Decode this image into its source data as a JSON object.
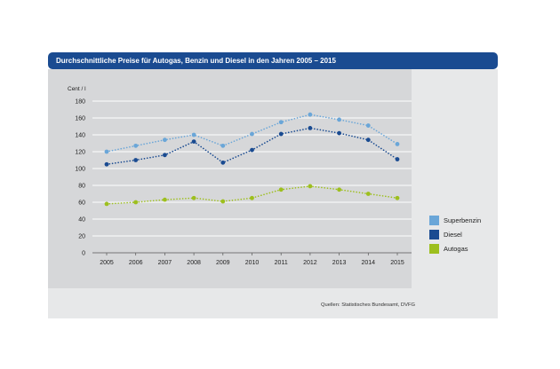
{
  "header": {
    "title": "Durchschnittliche Preise für Autogas, Benzin und Diesel in den Jahren 2005 – 2015"
  },
  "source": "Quellen: Statistisches Bundesamt, DVFG",
  "chart_data": {
    "type": "line",
    "title": "Durchschnittliche Preise für Autogas, Benzin und Diesel in den Jahren 2005 – 2015",
    "ylabel": "Cent / l",
    "xlabel": "",
    "categories": [
      "2005",
      "2006",
      "2007",
      "2008",
      "2009",
      "2010",
      "2011",
      "2012",
      "2013",
      "2014",
      "2015"
    ],
    "yticks": [
      "0",
      "20",
      "40",
      "60",
      "80",
      "100",
      "120",
      "140",
      "160",
      "180"
    ],
    "ylim": [
      0,
      180
    ],
    "grid": true,
    "legend_position": "right",
    "series": [
      {
        "name": "Superbenzin",
        "color": "#6aa6d8",
        "values": [
          120,
          127,
          134,
          140,
          127,
          141,
          155,
          164,
          158,
          151,
          129
        ]
      },
      {
        "name": "Diesel",
        "color": "#1a4b91",
        "values": [
          105,
          110,
          116,
          132,
          107,
          122,
          141,
          148,
          142,
          134,
          111
        ]
      },
      {
        "name": "Autogas",
        "color": "#9dbf1e",
        "values": [
          58,
          60,
          63,
          65,
          61,
          65,
          75,
          79,
          75,
          70,
          65
        ]
      }
    ]
  }
}
